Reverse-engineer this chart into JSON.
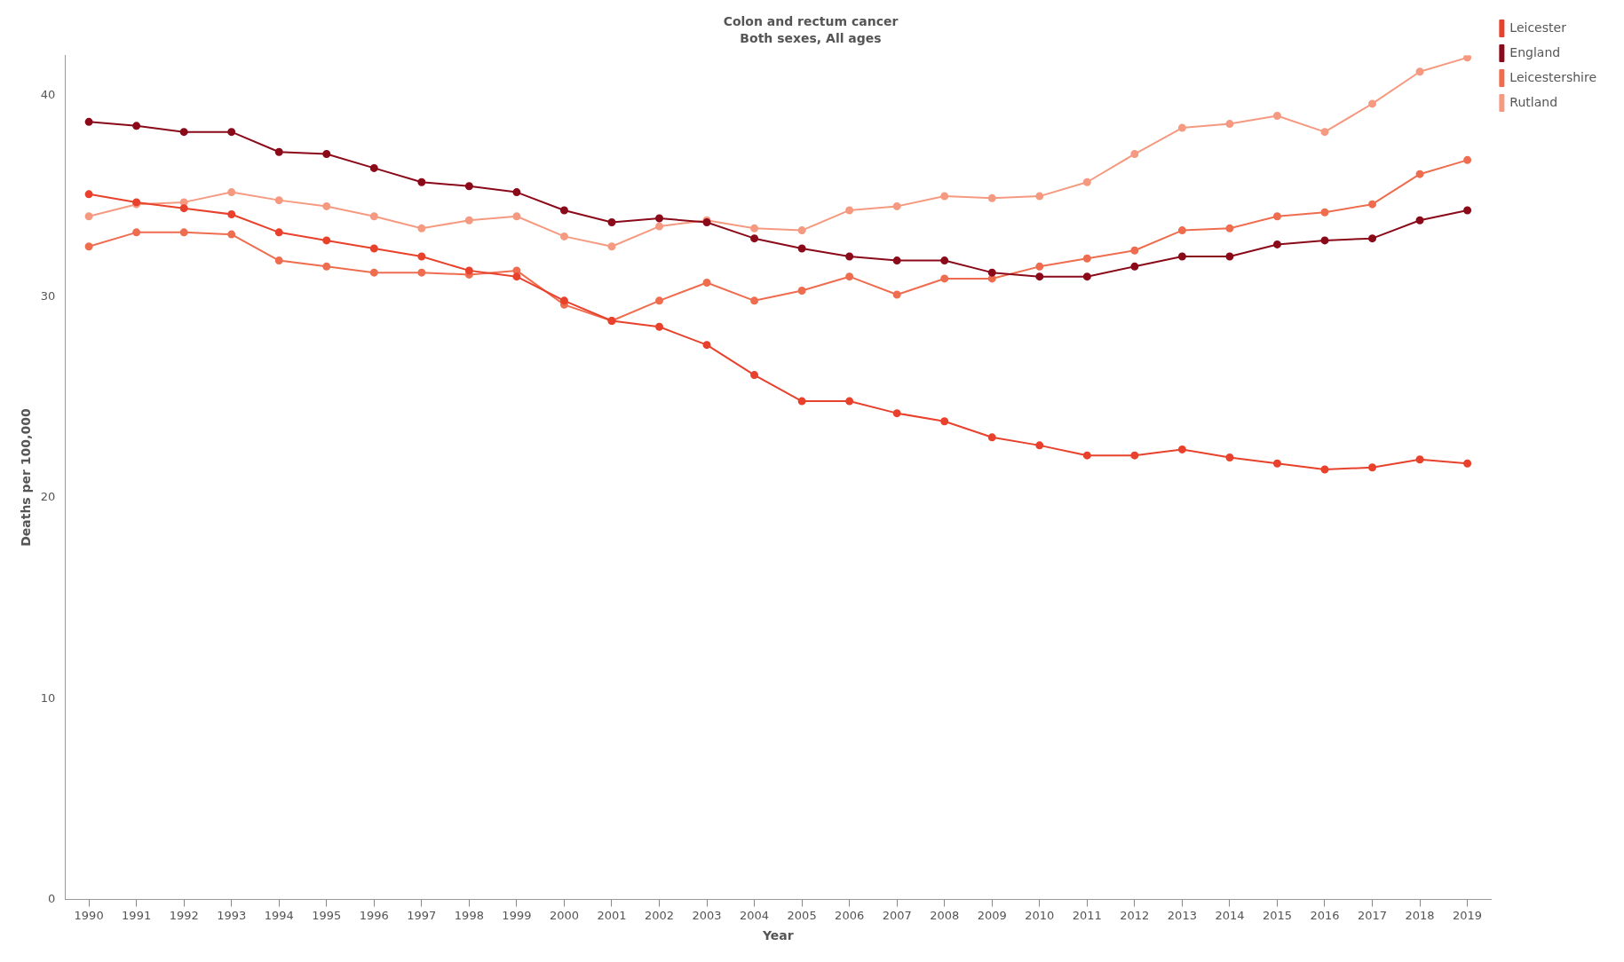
{
  "chart_data": {
    "type": "line",
    "title": "Colon and rectum cancer",
    "subtitle": "Both sexes, All ages",
    "xlabel": "Year",
    "ylabel": "Deaths per 100,000",
    "categories": [
      "1990",
      "1991",
      "1992",
      "1993",
      "1994",
      "1995",
      "1996",
      "1997",
      "1998",
      "1999",
      "2000",
      "2001",
      "2002",
      "2003",
      "2004",
      "2005",
      "2006",
      "2007",
      "2008",
      "2009",
      "2010",
      "2011",
      "2012",
      "2013",
      "2014",
      "2015",
      "2016",
      "2017",
      "2018",
      "2019"
    ],
    "series": [
      {
        "name": "Leicester",
        "color": "#e8412c",
        "values": [
          35.1,
          34.7,
          34.4,
          34.1,
          33.2,
          32.8,
          32.4,
          32.0,
          31.3,
          31.0,
          29.8,
          28.8,
          28.5,
          27.6,
          26.1,
          24.8,
          24.8,
          24.2,
          23.8,
          23.0,
          22.6,
          22.1,
          22.1,
          22.4,
          22.0,
          21.7,
          21.4,
          21.5,
          21.9,
          21.7
        ]
      },
      {
        "name": "England",
        "color": "#8b0a1a",
        "values": [
          38.7,
          38.5,
          38.2,
          38.2,
          37.2,
          37.1,
          36.4,
          35.7,
          35.5,
          35.2,
          34.3,
          33.7,
          33.9,
          33.7,
          32.9,
          32.4,
          32.0,
          31.8,
          31.8,
          31.2,
          31.0,
          31.0,
          31.5,
          32.0,
          32.0,
          32.6,
          32.8,
          32.9,
          33.8,
          34.3
        ]
      },
      {
        "name": "Leicestershire",
        "color": "#ef6d4f",
        "values": [
          32.5,
          33.2,
          33.2,
          33.1,
          31.8,
          31.5,
          31.2,
          31.2,
          31.1,
          31.3,
          29.6,
          28.8,
          29.8,
          30.7,
          29.8,
          30.3,
          31.0,
          30.1,
          30.9,
          30.9,
          31.5,
          31.9,
          32.3,
          33.3,
          33.4,
          34.0,
          34.2,
          34.6,
          36.1,
          36.8
        ]
      },
      {
        "name": "Rutland",
        "color": "#f59a80",
        "values": [
          34.0,
          34.6,
          34.7,
          35.2,
          34.8,
          34.5,
          34.0,
          33.4,
          33.8,
          34.0,
          33.0,
          32.5,
          33.5,
          33.8,
          33.4,
          33.3,
          34.3,
          34.5,
          35.0,
          34.9,
          35.0,
          35.7,
          37.1,
          38.4,
          38.6,
          39.0,
          38.2,
          39.6,
          41.2,
          41.9
        ]
      }
    ],
    "ylim": [
      0,
      42
    ],
    "yticks": [
      0,
      10,
      20,
      30,
      40
    ],
    "grid": false,
    "legend": "top right",
    "marker": "circle",
    "line_style": "solid"
  }
}
